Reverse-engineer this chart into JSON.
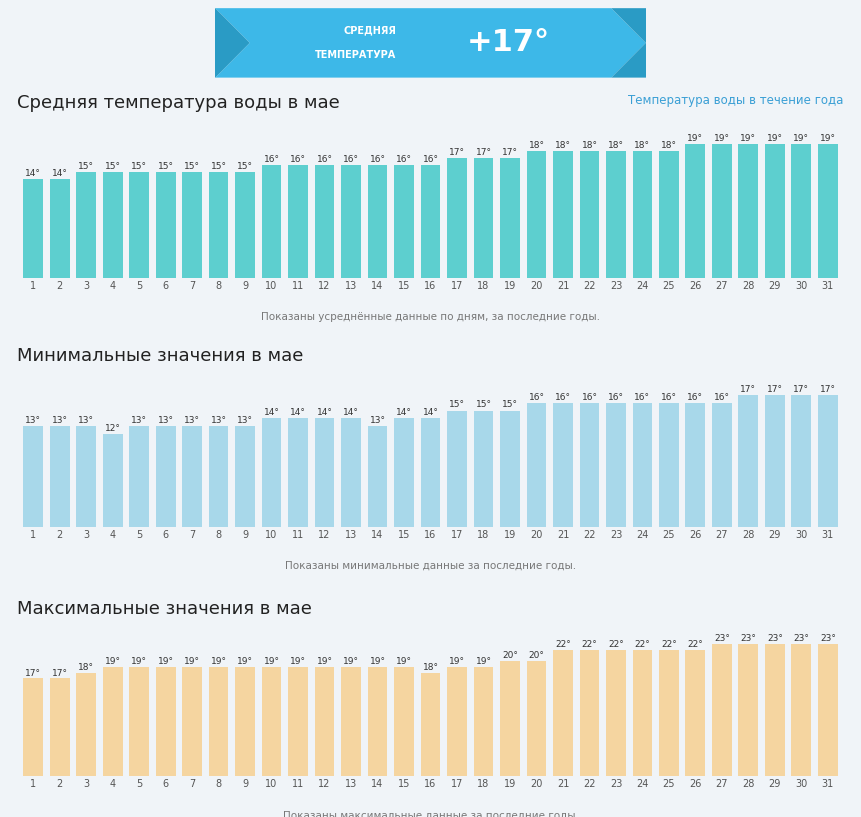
{
  "avg_values": [
    14,
    14,
    15,
    15,
    15,
    15,
    15,
    15,
    15,
    16,
    16,
    16,
    16,
    16,
    16,
    16,
    17,
    17,
    17,
    18,
    18,
    18,
    18,
    18,
    18,
    19,
    19,
    19,
    19,
    19,
    19
  ],
  "min_values": [
    13,
    13,
    13,
    12,
    13,
    13,
    13,
    13,
    13,
    14,
    14,
    14,
    14,
    13,
    14,
    14,
    15,
    15,
    15,
    16,
    16,
    16,
    16,
    16,
    16,
    16,
    16,
    17,
    17,
    17,
    17
  ],
  "max_values": [
    17,
    17,
    18,
    19,
    19,
    19,
    19,
    19,
    19,
    19,
    19,
    19,
    19,
    19,
    19,
    18,
    19,
    19,
    20,
    20,
    22,
    22,
    22,
    22,
    22,
    22,
    23,
    23,
    23,
    23,
    23
  ],
  "days": [
    1,
    2,
    3,
    4,
    5,
    6,
    7,
    8,
    9,
    10,
    11,
    12,
    13,
    14,
    15,
    16,
    17,
    18,
    19,
    20,
    21,
    22,
    23,
    24,
    25,
    26,
    27,
    28,
    29,
    30,
    31
  ],
  "avg_color": "#5DCFCF",
  "min_color": "#A8D8EA",
  "max_color": "#F5D5A0",
  "bg_color": "#f0f4f8",
  "title_banner_color1": "#4BB8E8",
  "title_banner_color2": "#3A9FD5",
  "header_temp": "+17°",
  "header_label1": "СРЕДНЯЯ",
  "header_label2": "ТЕМПЕРАТУРА",
  "section1_title": "Средняя температура воды в мае",
  "section2_title": "Минимальные значения в мае",
  "section3_title": "Максимальные значения в мае",
  "section1_note": "Показаны усреднённые данные по дням, за последние годы.",
  "section2_note": "Показаны минимальные данные за последние годы.",
  "section3_note": "Показаны максимальные данные за последние годы.",
  "link_text": "Температура воды в течение года",
  "link_color": "#3A9FD5"
}
